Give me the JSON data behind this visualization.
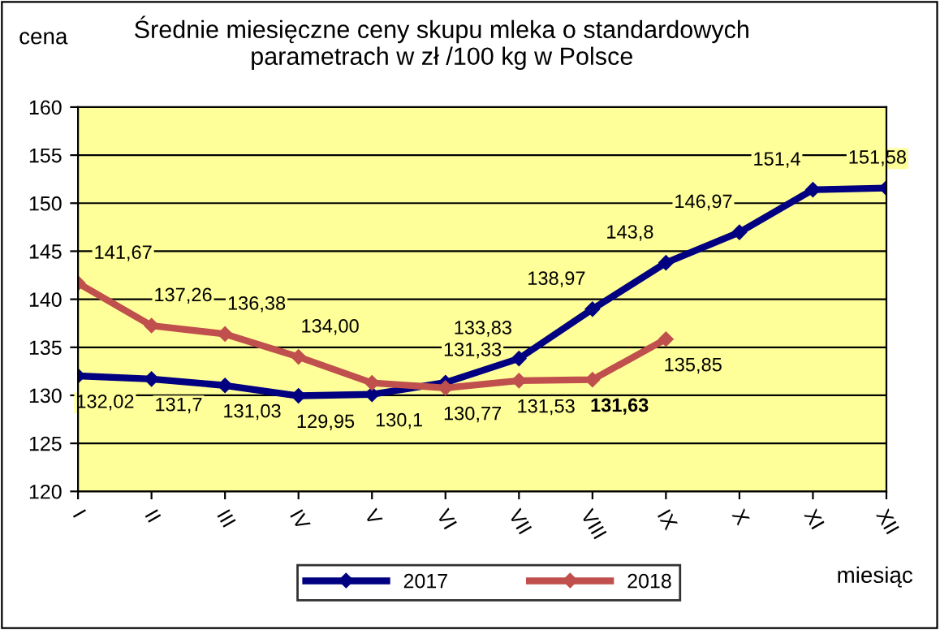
{
  "chart_data": {
    "type": "line",
    "title": "Średnie miesięczne ceny skupu mleka o standardowych\nparametrach w zł /100 kg w Polsce",
    "ylabel": "cena",
    "xlabel": "miesiąc",
    "categories": [
      "I",
      "II",
      "III",
      "IV",
      "V",
      "VI",
      "VII",
      "VIII",
      "IX",
      "X",
      "XI",
      "XII"
    ],
    "series": [
      {
        "name": "2017",
        "color": "#000080",
        "values": [
          132.02,
          131.7,
          131.03,
          129.95,
          130.1,
          131.33,
          133.83,
          138.97,
          143.8,
          146.97,
          151.4,
          151.58
        ],
        "value_labels": [
          "132,02",
          "131,7",
          "131,03",
          "129,95",
          "130,1",
          "131,33",
          "133,83",
          "138,97",
          "143,8",
          "146,97",
          "151,4",
          "151,58"
        ]
      },
      {
        "name": "2018",
        "color": "#c0504d",
        "values": [
          141.67,
          137.26,
          136.38,
          134.0,
          131.3,
          130.77,
          131.53,
          131.63,
          135.85,
          null,
          null,
          null
        ],
        "value_labels": [
          "141,67",
          "137,26",
          "136,38",
          "134,00",
          null,
          "130,77",
          "131,53",
          "131,63",
          "135,85",
          null,
          null,
          null
        ]
      }
    ],
    "ylim": [
      120,
      160
    ],
    "yticks": [
      120,
      125,
      130,
      135,
      140,
      145,
      150,
      155,
      160
    ],
    "grid": "y",
    "legend": "bottom",
    "marker": "diamond",
    "line_style": "solid"
  }
}
